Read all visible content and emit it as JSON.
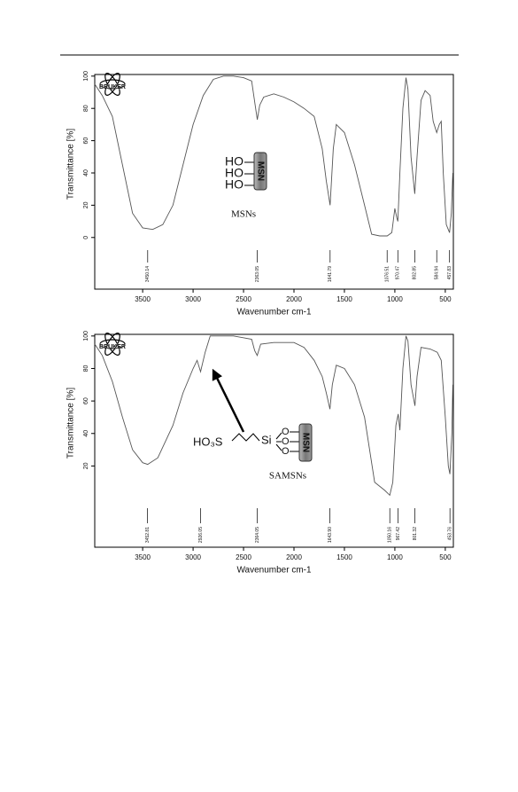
{
  "chart_data": [
    {
      "type": "line",
      "logo": "BRUKER",
      "ylabel": "Transmittance [%]",
      "xlabel": "Wavenumber cm-1",
      "xlim": [
        3975,
        420
      ],
      "ylim": [
        -32,
        101
      ],
      "xticks": [
        3500,
        3000,
        2500,
        2000,
        1500,
        1000,
        500
      ],
      "yticks": [
        0,
        20,
        40,
        60,
        80,
        100
      ],
      "x": [
        3975,
        3900,
        3800,
        3700,
        3600,
        3500,
        3400,
        3300,
        3200,
        3100,
        3000,
        2900,
        2800,
        2700,
        2600,
        2500,
        2420,
        2380,
        2363,
        2340,
        2300,
        2200,
        2100,
        2000,
        1900,
        1800,
        1720,
        1680,
        1642,
        1610,
        1580,
        1500,
        1400,
        1300,
        1230,
        1150,
        1076,
        1030,
        1000,
        980,
        970,
        950,
        920,
        890,
        870,
        840,
        803,
        780,
        740,
        700,
        650,
        620,
        585,
        560,
        540,
        520,
        490,
        458,
        440,
        425
      ],
      "series": [
        {
          "name": "MSNs",
          "color": "#555555",
          "values": [
            95,
            88,
            75,
            45,
            15,
            6,
            5,
            8,
            20,
            45,
            70,
            88,
            98,
            100,
            100,
            99,
            97,
            80,
            73,
            82,
            87,
            89,
            87,
            84,
            80,
            75,
            55,
            35,
            20,
            55,
            70,
            65,
            45,
            20,
            2,
            1,
            1,
            3,
            18,
            12,
            10,
            40,
            80,
            99,
            92,
            50,
            27,
            50,
            85,
            91,
            88,
            72,
            65,
            70,
            72,
            40,
            8,
            3,
            15,
            40
          ]
        }
      ],
      "peaks": [
        {
          "value": 3450.14,
          "label": "3450.14"
        },
        {
          "value": 2363.05,
          "label": "2363.05"
        },
        {
          "value": 1641.79,
          "label": "1641.79"
        },
        {
          "value": 1076.51,
          "label": "1076.51"
        },
        {
          "value": 970.47,
          "label": "970.47"
        },
        {
          "value": 802.85,
          "label": "802.85"
        },
        {
          "value": 584.94,
          "label": "584.94"
        },
        {
          "value": 457.83,
          "label": "457.83"
        }
      ],
      "structure": {
        "groups": [
          "HO",
          "HO",
          "HO"
        ],
        "core": "MSN"
      }
    },
    {
      "type": "line",
      "logo": "BRUKER",
      "ylabel": "Transmittance [%]",
      "xlabel": "Wavenumber cm-1",
      "xlim": [
        3975,
        420
      ],
      "ylim": [
        -30,
        101
      ],
      "xticks": [
        3500,
        3000,
        2500,
        2000,
        1500,
        1000,
        500
      ],
      "yticks": [
        20,
        40,
        60,
        80,
        100
      ],
      "x": [
        3975,
        3900,
        3800,
        3700,
        3600,
        3500,
        3450,
        3350,
        3200,
        3100,
        3000,
        2960,
        2926,
        2880,
        2830,
        2600,
        2420,
        2390,
        2364,
        2330,
        2200,
        2000,
        1900,
        1800,
        1720,
        1680,
        1644,
        1620,
        1580,
        1500,
        1400,
        1300,
        1200,
        1100,
        1050,
        1020,
        990,
        967,
        950,
        920,
        890,
        870,
        840,
        801,
        780,
        740,
        650,
        580,
        540,
        500,
        470,
        454,
        435,
        425
      ],
      "series": [
        {
          "name": "SAMSNs",
          "color": "#555555",
          "values": [
            95,
            88,
            72,
            50,
            30,
            22,
            21,
            25,
            45,
            65,
            80,
            85,
            78,
            90,
            100,
            100,
            98,
            91,
            88,
            95,
            96,
            96,
            93,
            85,
            75,
            65,
            55,
            70,
            82,
            80,
            70,
            50,
            10,
            5,
            2,
            10,
            45,
            52,
            42,
            80,
            100,
            97,
            70,
            57,
            75,
            93,
            92,
            90,
            85,
            50,
            20,
            15,
            40,
            70
          ]
        }
      ],
      "peaks": [
        {
          "value": 3452.81,
          "label": "3452.81"
        },
        {
          "value": 2926.05,
          "label": "2926.05"
        },
        {
          "value": 2364.05,
          "label": "2364.05"
        },
        {
          "value": 1643.9,
          "label": "1643.90"
        },
        {
          "value": 1050.16,
          "label": "1050.16"
        },
        {
          "value": 967.42,
          "label": "967.42"
        },
        {
          "value": 801.32,
          "label": "801.32"
        },
        {
          "value": 453.76,
          "label": "453.76"
        }
      ],
      "structure": {
        "group": "HO₃S",
        "linker": "Si",
        "oxygens": [
          "O",
          "O",
          "O"
        ],
        "core": "MSN"
      }
    }
  ]
}
